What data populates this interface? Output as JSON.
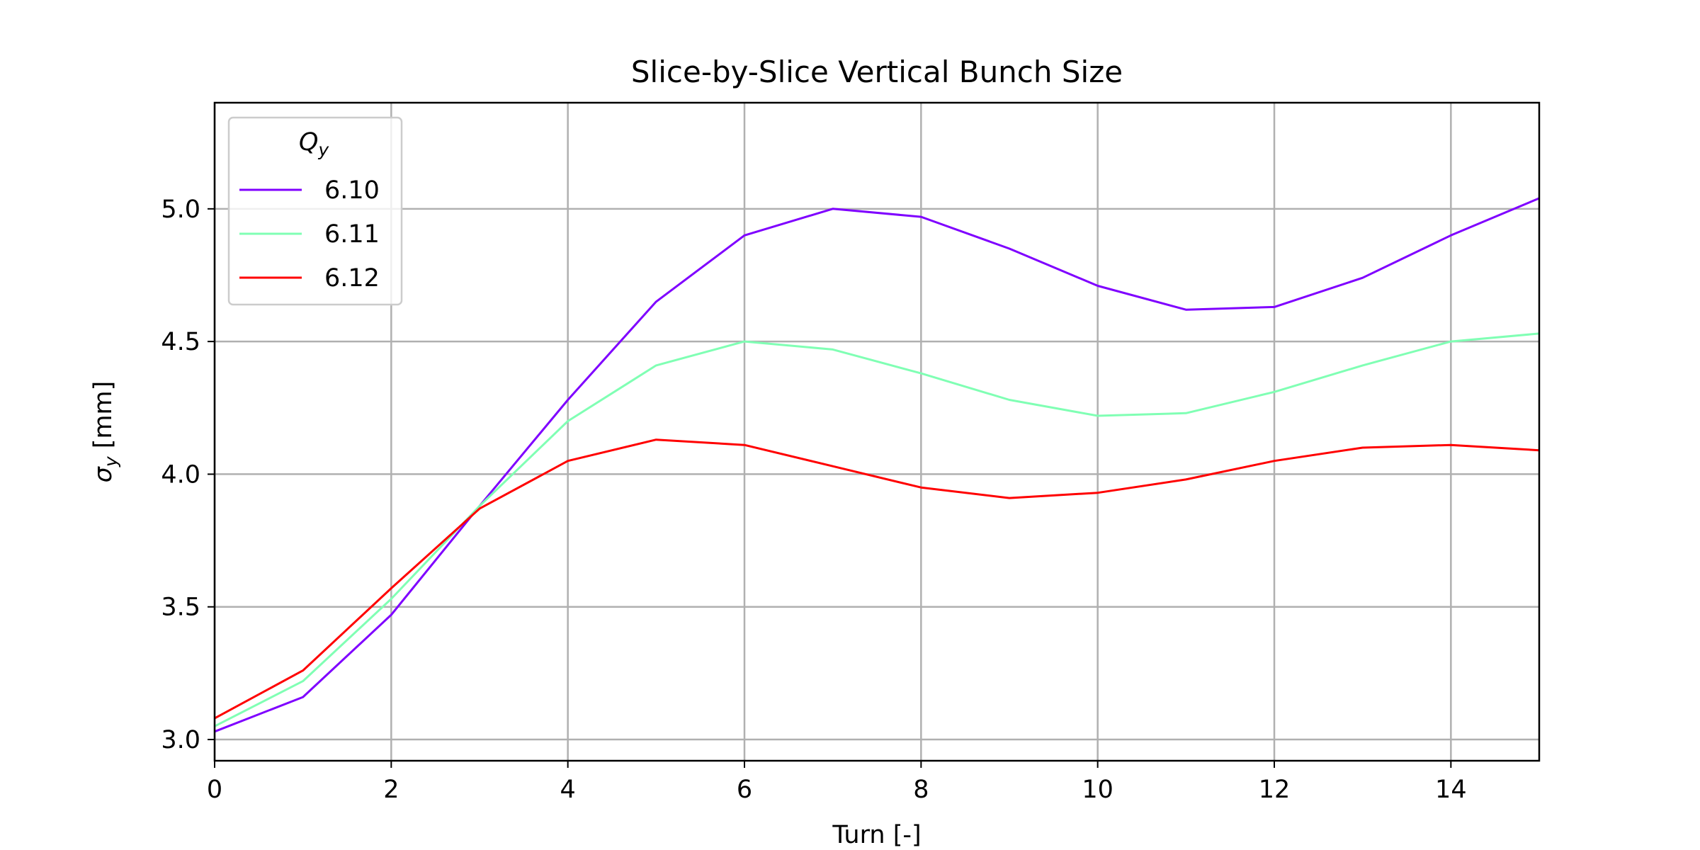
{
  "chart_data": {
    "type": "line",
    "title": "Slice-by-Slice Vertical Bunch Size",
    "xlabel": "Turn [-]",
    "ylabel_symbol": "σ",
    "ylabel_subscript": "y",
    "ylabel_unit": " [mm]",
    "xlim": [
      0,
      15
    ],
    "ylim": [
      2.92,
      5.4
    ],
    "x_ticks": [
      0,
      2,
      4,
      6,
      8,
      10,
      12,
      14
    ],
    "y_ticks": [
      3.0,
      3.5,
      4.0,
      4.5,
      5.0
    ],
    "grid": true,
    "legend": {
      "title_symbol": "Q",
      "title_subscript": "y",
      "position": "top-left"
    },
    "x": [
      0,
      1,
      2,
      3,
      4,
      5,
      6,
      7,
      8,
      9,
      10,
      11,
      12,
      13,
      14,
      15
    ],
    "series": [
      {
        "name": "6.10",
        "color": "#7f00ff",
        "values": [
          3.03,
          3.16,
          3.47,
          3.88,
          4.28,
          4.65,
          4.9,
          5.0,
          4.97,
          4.85,
          4.71,
          4.62,
          4.63,
          4.74,
          4.9,
          5.04
        ]
      },
      {
        "name": "6.11",
        "color": "#80ffb4",
        "values": [
          3.05,
          3.22,
          3.53,
          3.88,
          4.2,
          4.41,
          4.5,
          4.47,
          4.38,
          4.28,
          4.22,
          4.23,
          4.31,
          4.41,
          4.5,
          4.53
        ]
      },
      {
        "name": "6.12",
        "color": "#ff0000",
        "values": [
          3.08,
          3.26,
          3.57,
          3.87,
          4.05,
          4.13,
          4.11,
          4.03,
          3.95,
          3.91,
          3.93,
          3.98,
          4.05,
          4.1,
          4.11,
          4.09
        ]
      }
    ]
  }
}
